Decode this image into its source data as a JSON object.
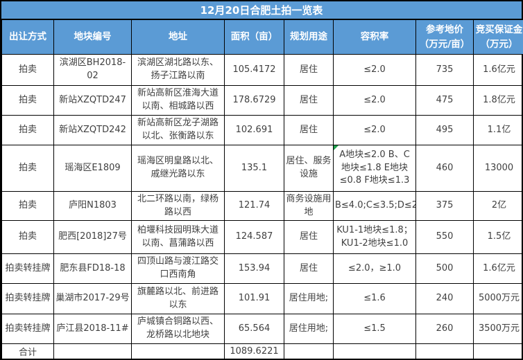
{
  "title": "12月20日合肥土拍一览表",
  "columns": [
    {
      "label": "出让方式"
    },
    {
      "label": "地块编号"
    },
    {
      "label": "地址"
    },
    {
      "label": "面积（亩）"
    },
    {
      "label": "规划用途"
    },
    {
      "label": "容积率"
    },
    {
      "label": "参考地价",
      "sub": "（万元/亩）"
    },
    {
      "label": "竞买保证金",
      "sub": "（万元）"
    }
  ],
  "rows": [
    {
      "method": "拍卖",
      "plot_no": "滨湖区BH2018-02",
      "address": "滨湖区湖北路以东、扬子江路以南",
      "area": "105.4172",
      "usage": "居住",
      "far": "≤2.0",
      "price": "735",
      "deposit": "1.6亿元"
    },
    {
      "method": "拍卖",
      "plot_no": "新站XZQTD247",
      "address": "新站高新区淮海大道以南、相城路以西",
      "area": "178.6729",
      "usage": "居住",
      "far": "≤2.0",
      "price": "475",
      "deposit": "1.8亿元"
    },
    {
      "method": "拍卖",
      "plot_no": "新站XZQTD242",
      "address": "新站高新区龙子湖路以北、张衡路以东",
      "area": "102.691",
      "usage": "居住",
      "far": "≤2.0",
      "price": "495",
      "deposit": "1.1亿"
    },
    {
      "method": "拍卖",
      "plot_no": "瑶海区E1809",
      "address": "瑶海区明皇路以北、戚继光路以东",
      "area": "135.1",
      "usage": "居住、服务设施",
      "far": "A地块≤2.0 B、C地块≤1.8 E地块≤0.8 F地块≤1.3",
      "price": "460",
      "deposit": "13000",
      "comment_marker": true
    },
    {
      "method": "拍卖",
      "plot_no": "庐阳N1803",
      "address": "北二环路以南，绿杨路以西",
      "area": "121.74",
      "usage": "商务设施用地",
      "far": "B≤4.0;C≤3.5;D≤2.0",
      "price": "375",
      "deposit": "2亿"
    },
    {
      "method": "拍卖",
      "plot_no": "肥西[2018]27号",
      "address": "柏堰科技园明珠大道以南、菖蒲路以西",
      "area": "124.587",
      "usage": "居住",
      "far": "KU1-1地块≤1.8；KU1-2地块≤1.0",
      "price": "550",
      "deposit": "1.5亿"
    },
    {
      "method": "拍卖转挂牌",
      "plot_no": "肥东县FD18-18",
      "address": "四顶山路与渡江路交口西南角",
      "area": "153.94",
      "usage": "居住",
      "far": "≤2.0，≥1.0",
      "price": "500",
      "deposit": "1.6亿元"
    },
    {
      "method": "拍卖转挂牌",
      "plot_no": "巢湖市2017-29号",
      "address": "旗麓路以北、前进路以东",
      "area": "101.91",
      "usage": "居住用地;",
      "far": "≤1.6",
      "price": "240",
      "deposit": "5000万元"
    },
    {
      "method": "拍卖转挂牌",
      "plot_no": "庐江县2018-11#",
      "address": "庐城镇合铜路以西、龙桥路以北地块",
      "area": "65.564",
      "usage": "居住用地;",
      "far": "≤1.5",
      "price": "260",
      "deposit": "3500万元"
    }
  ],
  "total_row": {
    "label": "合计",
    "area": "1089.6221"
  },
  "colors": {
    "header_bg": "#5b9bd5",
    "header_text": "#ffffff",
    "body_text": "#404040",
    "border": "#000000",
    "note_green": "#1e9e4a"
  }
}
